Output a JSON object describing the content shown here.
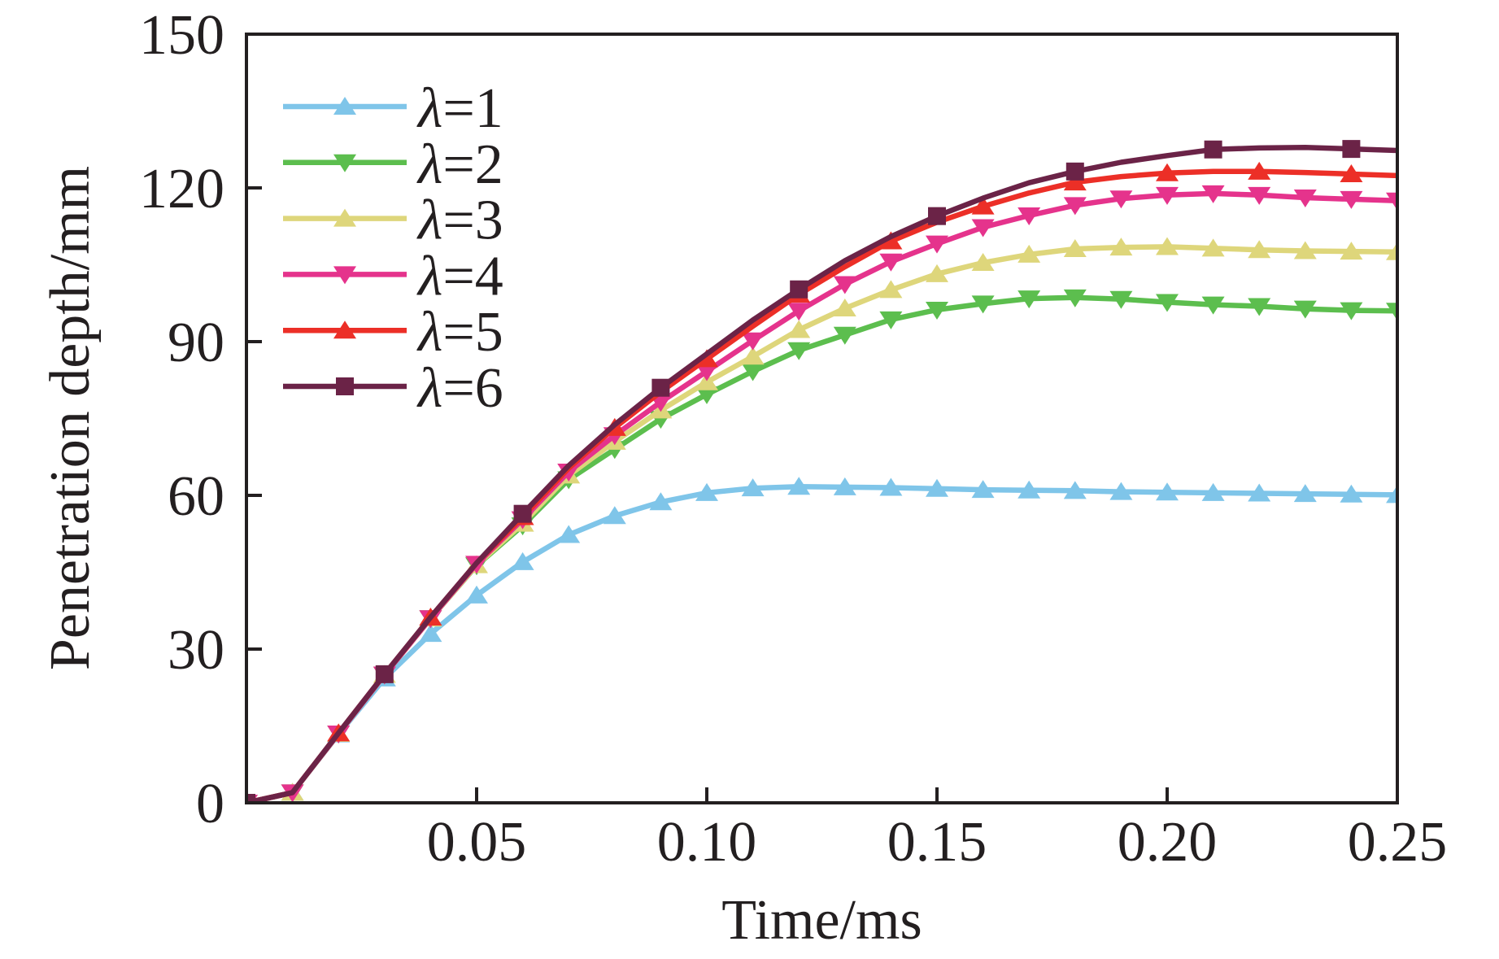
{
  "figure": {
    "xlabel": "Time/ms",
    "ylabel": "Penetration depth/mm"
  },
  "chart_data": {
    "type": "line",
    "title": "",
    "xlabel": "Time/ms",
    "ylabel": "Penetration depth/mm",
    "xlim": [
      0,
      0.25
    ],
    "ylim": [
      0,
      150
    ],
    "xticks": [
      0.05,
      0.1,
      0.15,
      0.2,
      0.25
    ],
    "xtick_labels": [
      "0.05",
      "0.10",
      "0.15",
      "0.20",
      "0.25"
    ],
    "yticks": [
      0,
      30,
      60,
      90,
      120,
      150
    ],
    "ytick_labels": [
      "0",
      "30",
      "60",
      "90",
      "120",
      "150"
    ],
    "grid": false,
    "legend_position": "top-left-inside",
    "axis_color": "#231F20",
    "x": [
      0,
      0.01,
      0.02,
      0.03,
      0.04,
      0.05,
      0.06,
      0.07,
      0.08,
      0.09,
      0.1,
      0.11,
      0.12,
      0.13,
      0.14,
      0.15,
      0.16,
      0.17,
      0.18,
      0.19,
      0.2,
      0.21,
      0.22,
      0.23,
      0.24,
      0.25
    ],
    "series": [
      {
        "name": "λ=1",
        "color": "#7FC5E9",
        "marker": "triangle-up",
        "marker_every": 1,
        "values": [
          0,
          2,
          13.4,
          24.3,
          33,
          40.5,
          47,
          52.3,
          56,
          58.7,
          60.5,
          61.4,
          61.7,
          61.6,
          61.5,
          61.3,
          61.1,
          61,
          60.9,
          60.7,
          60.6,
          60.5,
          60.4,
          60.3,
          60.2,
          60.1
        ]
      },
      {
        "name": "λ=2",
        "color": "#5CBE4E",
        "marker": "triangle-down",
        "marker_every": 1,
        "values": [
          0,
          2,
          13.5,
          25,
          36,
          46.3,
          54.1,
          63.1,
          69,
          74.9,
          79.7,
          84.2,
          88.3,
          91.3,
          94.3,
          96.2,
          97.4,
          98.4,
          98.6,
          98.3,
          97.7,
          97.2,
          96.9,
          96.4,
          96.1,
          96
        ]
      },
      {
        "name": "λ=3",
        "color": "#DED67B",
        "marker": "triangle-up",
        "marker_every": 1,
        "values": [
          0,
          2,
          13.5,
          25,
          36,
          46.4,
          54.5,
          63.9,
          70.5,
          76.6,
          82.1,
          87.1,
          92.3,
          96.5,
          100.1,
          103.2,
          105.4,
          107,
          108.1,
          108.4,
          108.5,
          108.2,
          107.9,
          107.7,
          107.6,
          107.5
        ]
      },
      {
        "name": "λ=4",
        "color": "#E5338C",
        "marker": "triangle-down",
        "marker_every": 1,
        "values": [
          0,
          2,
          13.5,
          25,
          36,
          46.6,
          55.3,
          64.6,
          71.7,
          78.2,
          84.2,
          90.2,
          96,
          101.2,
          105.6,
          109.1,
          112.3,
          114.6,
          116.6,
          117.9,
          118.6,
          118.9,
          118.6,
          118.1,
          117.8,
          117.5
        ]
      },
      {
        "name": "λ=5",
        "color": "#EC2F27",
        "marker": "triangle-up",
        "marker_every": 2,
        "values": [
          0,
          2,
          13.6,
          25.1,
          36.2,
          46.8,
          55.8,
          65.3,
          73.2,
          80.2,
          86.6,
          93,
          99.2,
          104.6,
          109.6,
          113.3,
          116.4,
          119,
          121.1,
          122.2,
          122.9,
          123.2,
          123.2,
          123,
          122.7,
          122.4
        ]
      },
      {
        "name": "λ=6",
        "color": "#6B2347",
        "marker": "square",
        "marker_every": 3,
        "values": [
          0,
          2,
          13.6,
          25.1,
          36.2,
          46.8,
          56.4,
          65.8,
          73.8,
          81,
          87.6,
          94.2,
          100.2,
          105.8,
          110.5,
          114.5,
          118,
          121,
          123.2,
          125,
          126.3,
          127.5,
          127.8,
          127.9,
          127.6,
          127.3
        ]
      }
    ]
  }
}
